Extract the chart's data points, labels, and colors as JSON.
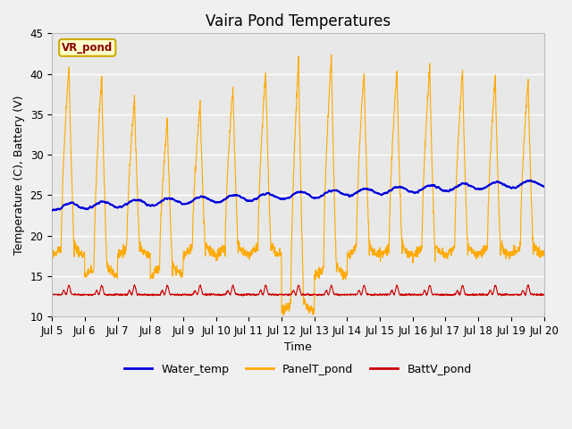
{
  "title": "Vaira Pond Temperatures",
  "xlabel": "Time",
  "ylabel": "Temperature (C), Battery (V)",
  "ylim": [
    10,
    45
  ],
  "yticks": [
    10,
    15,
    20,
    25,
    30,
    35,
    40,
    45
  ],
  "xtick_labels": [
    "Jul 5",
    "Jul 6",
    "Jul 7",
    "Jul 8",
    "Jul 9",
    "Jul 10",
    "Jul 11",
    "Jul 12",
    "Jul 13",
    "Jul 14",
    "Jul 15",
    "Jul 16",
    "Jul 17",
    "Jul 18",
    "Jul 19",
    "Jul 20"
  ],
  "water_temp_color": "#0000dd",
  "panel_temp_color": "#ffaa00",
  "batt_color": "#cc0000",
  "background_color": "#f0f0f0",
  "plot_bg_color": "#e8e8e8",
  "legend_label_water": "Water_temp",
  "legend_label_panel": "PanelT_pond",
  "legend_label_batt": "BattV_pond",
  "site_label": "VR_pond",
  "title_fontsize": 12,
  "axis_label_fontsize": 9,
  "tick_fontsize": 8.5
}
